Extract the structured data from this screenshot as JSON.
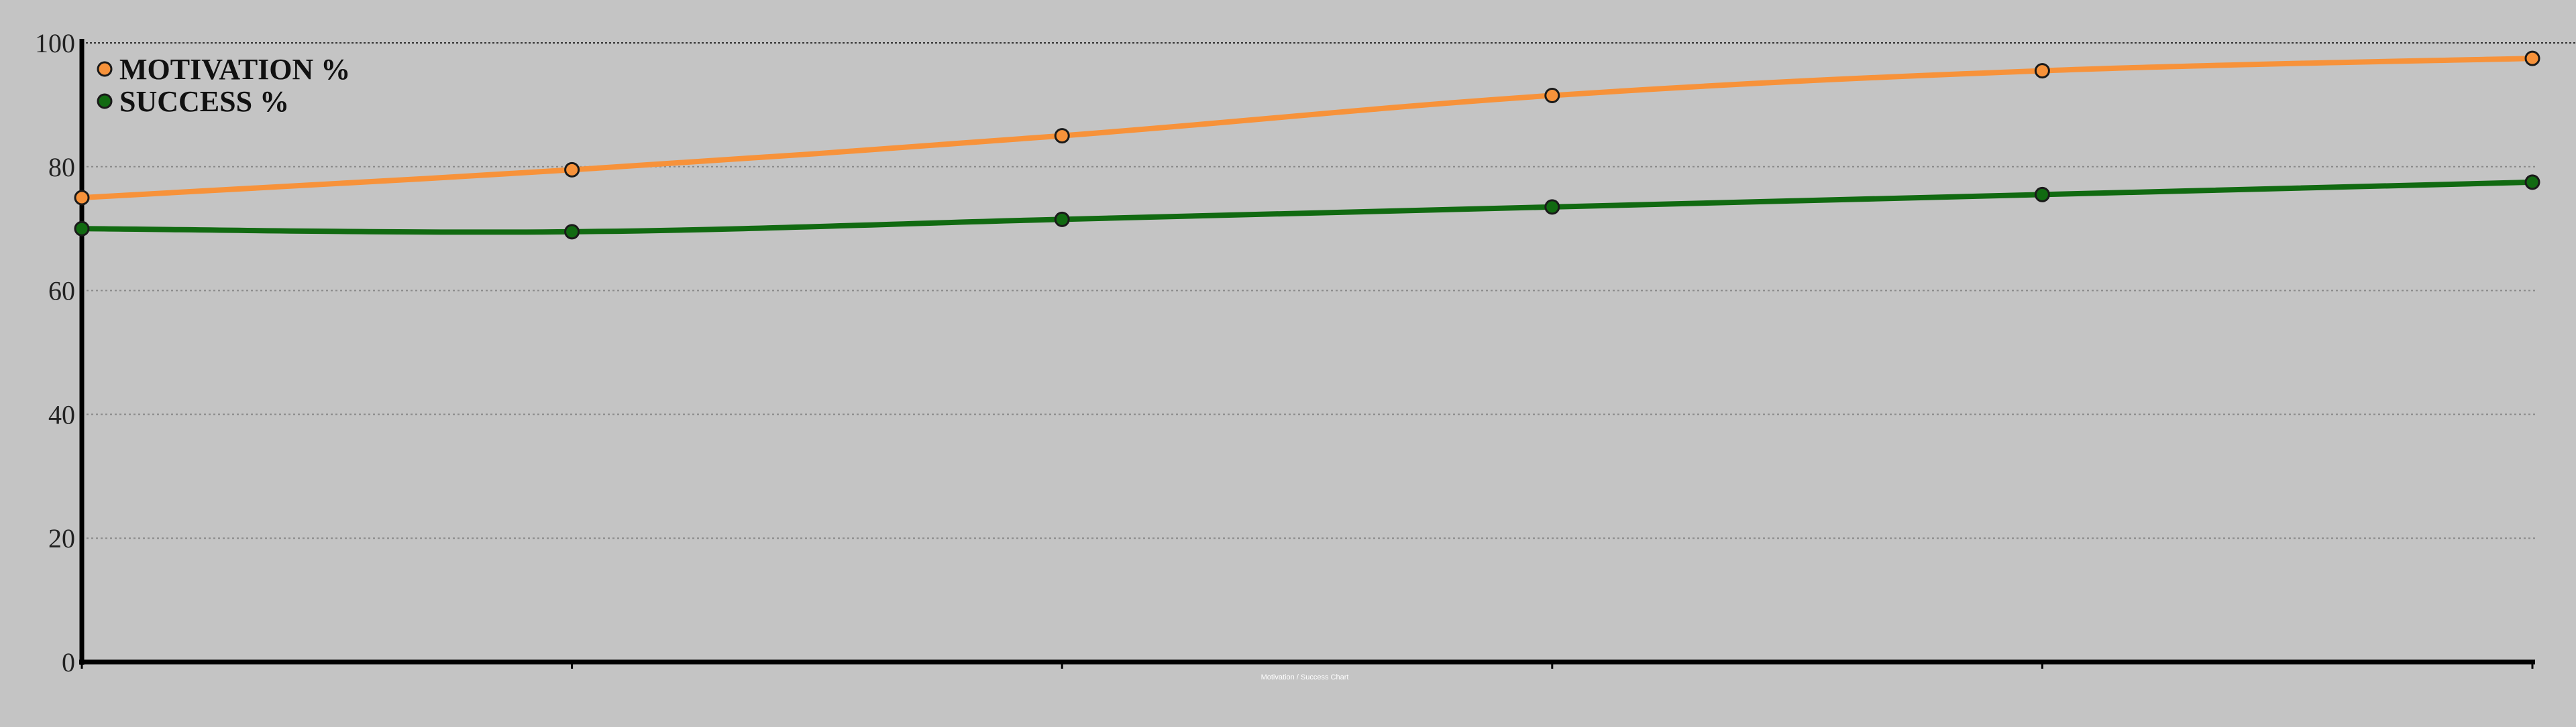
{
  "chart_data": {
    "type": "line",
    "title": "",
    "xlabel": "",
    "ylabel": "",
    "categories": [
      "",
      "",
      "",
      "",
      "",
      ""
    ],
    "ylim": [
      0,
      100
    ],
    "y_ticks": [
      "0",
      "20",
      "40",
      "60",
      "80",
      "100"
    ],
    "grid": "horizontal dotted",
    "smooth": true,
    "legend_position": "top-left",
    "series": [
      {
        "name": "MOTIVATION %",
        "color": "#f7923a",
        "values": [
          75,
          79.5,
          85,
          91.5,
          95.5,
          97.5
        ]
      },
      {
        "name": "SUCCESS %",
        "color": "#116a11",
        "values": [
          70,
          69.5,
          71.5,
          73.5,
          75.5,
          77.5
        ]
      }
    ],
    "background": "#c4c4c4",
    "axis_color": "#000000",
    "footer_text": "Motivation / Success Chart"
  }
}
